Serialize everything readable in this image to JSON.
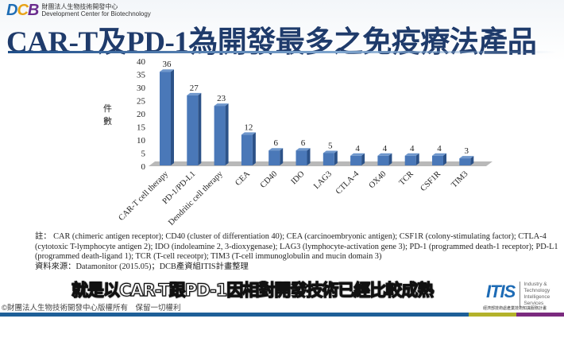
{
  "header": {
    "logo_text": "DCB",
    "org_name_zh": "財團法人生物技術開發中心",
    "org_name_en": "Development Center for Biotechnology",
    "title": "CAR-T及PD-1為開發最多之免疫療法產品"
  },
  "chart_data": {
    "type": "bar",
    "title": "",
    "xlabel": "",
    "ylabel": "件數",
    "ylim": [
      0,
      40
    ],
    "yticks": [
      0,
      5,
      10,
      15,
      20,
      25,
      30,
      35,
      40
    ],
    "categories": [
      "CAR-T cell therapy",
      "PD-1/PD-L1",
      "Dendritic cell therapy",
      "CEA",
      "CD40",
      "IDO",
      "LAG3",
      "CTLA-4",
      "OX40",
      "TCR",
      "CSF1R",
      "TIM3"
    ],
    "values": [
      36,
      27,
      23,
      12,
      6,
      6,
      5,
      4,
      4,
      4,
      4,
      3
    ],
    "bar_color": "#4a78b8",
    "grid": false
  },
  "notes": {
    "abbreviations": "註： CAR (chimeric antigen receptor); CD40 (cluster of differentiation 40); CEA (carcinoembryonic antigen); CSF1R (colony-stimulating factor); CTLA-4 (cytotoxic T-lymphocyte antigen 2); IDO (indoleamine 2, 3-dioxygenase); LAG3 (lymphocyte-activation gene 3); PD-1 (programmed death-1 receptor); PD-L1 (programmed death-ligand 1); TCR (T-cell receotpr); TIM3 (T-cell immunoglobulin and mucin domain 3)",
    "source": "資料來源：Datamonitor (2015.05)；DCB產資組ITIS計畫整理"
  },
  "subtitle": "就是以CAR-T跟PD-1因相對開發技術已經比較成熟",
  "footer": {
    "copyright": "©財團法人生物技術開發中心版權所有　保留一切權利",
    "itis_logo": "ITIS",
    "itis_lines": [
      "Industry &",
      "Technology",
      "Intelligence",
      "Services"
    ],
    "itis_sub": "經濟部技術處產業技術知識服務計畫"
  },
  "colors": {
    "title": "#1f3b6b",
    "bar": "#4a78b8",
    "bar_side": "#2c5288",
    "bar_top": "#6f97cc",
    "floor": "#b9b9b9",
    "band_blue": "#1e5f98",
    "band_green": "#b3b22a",
    "band_purple": "#7b2a7f"
  }
}
